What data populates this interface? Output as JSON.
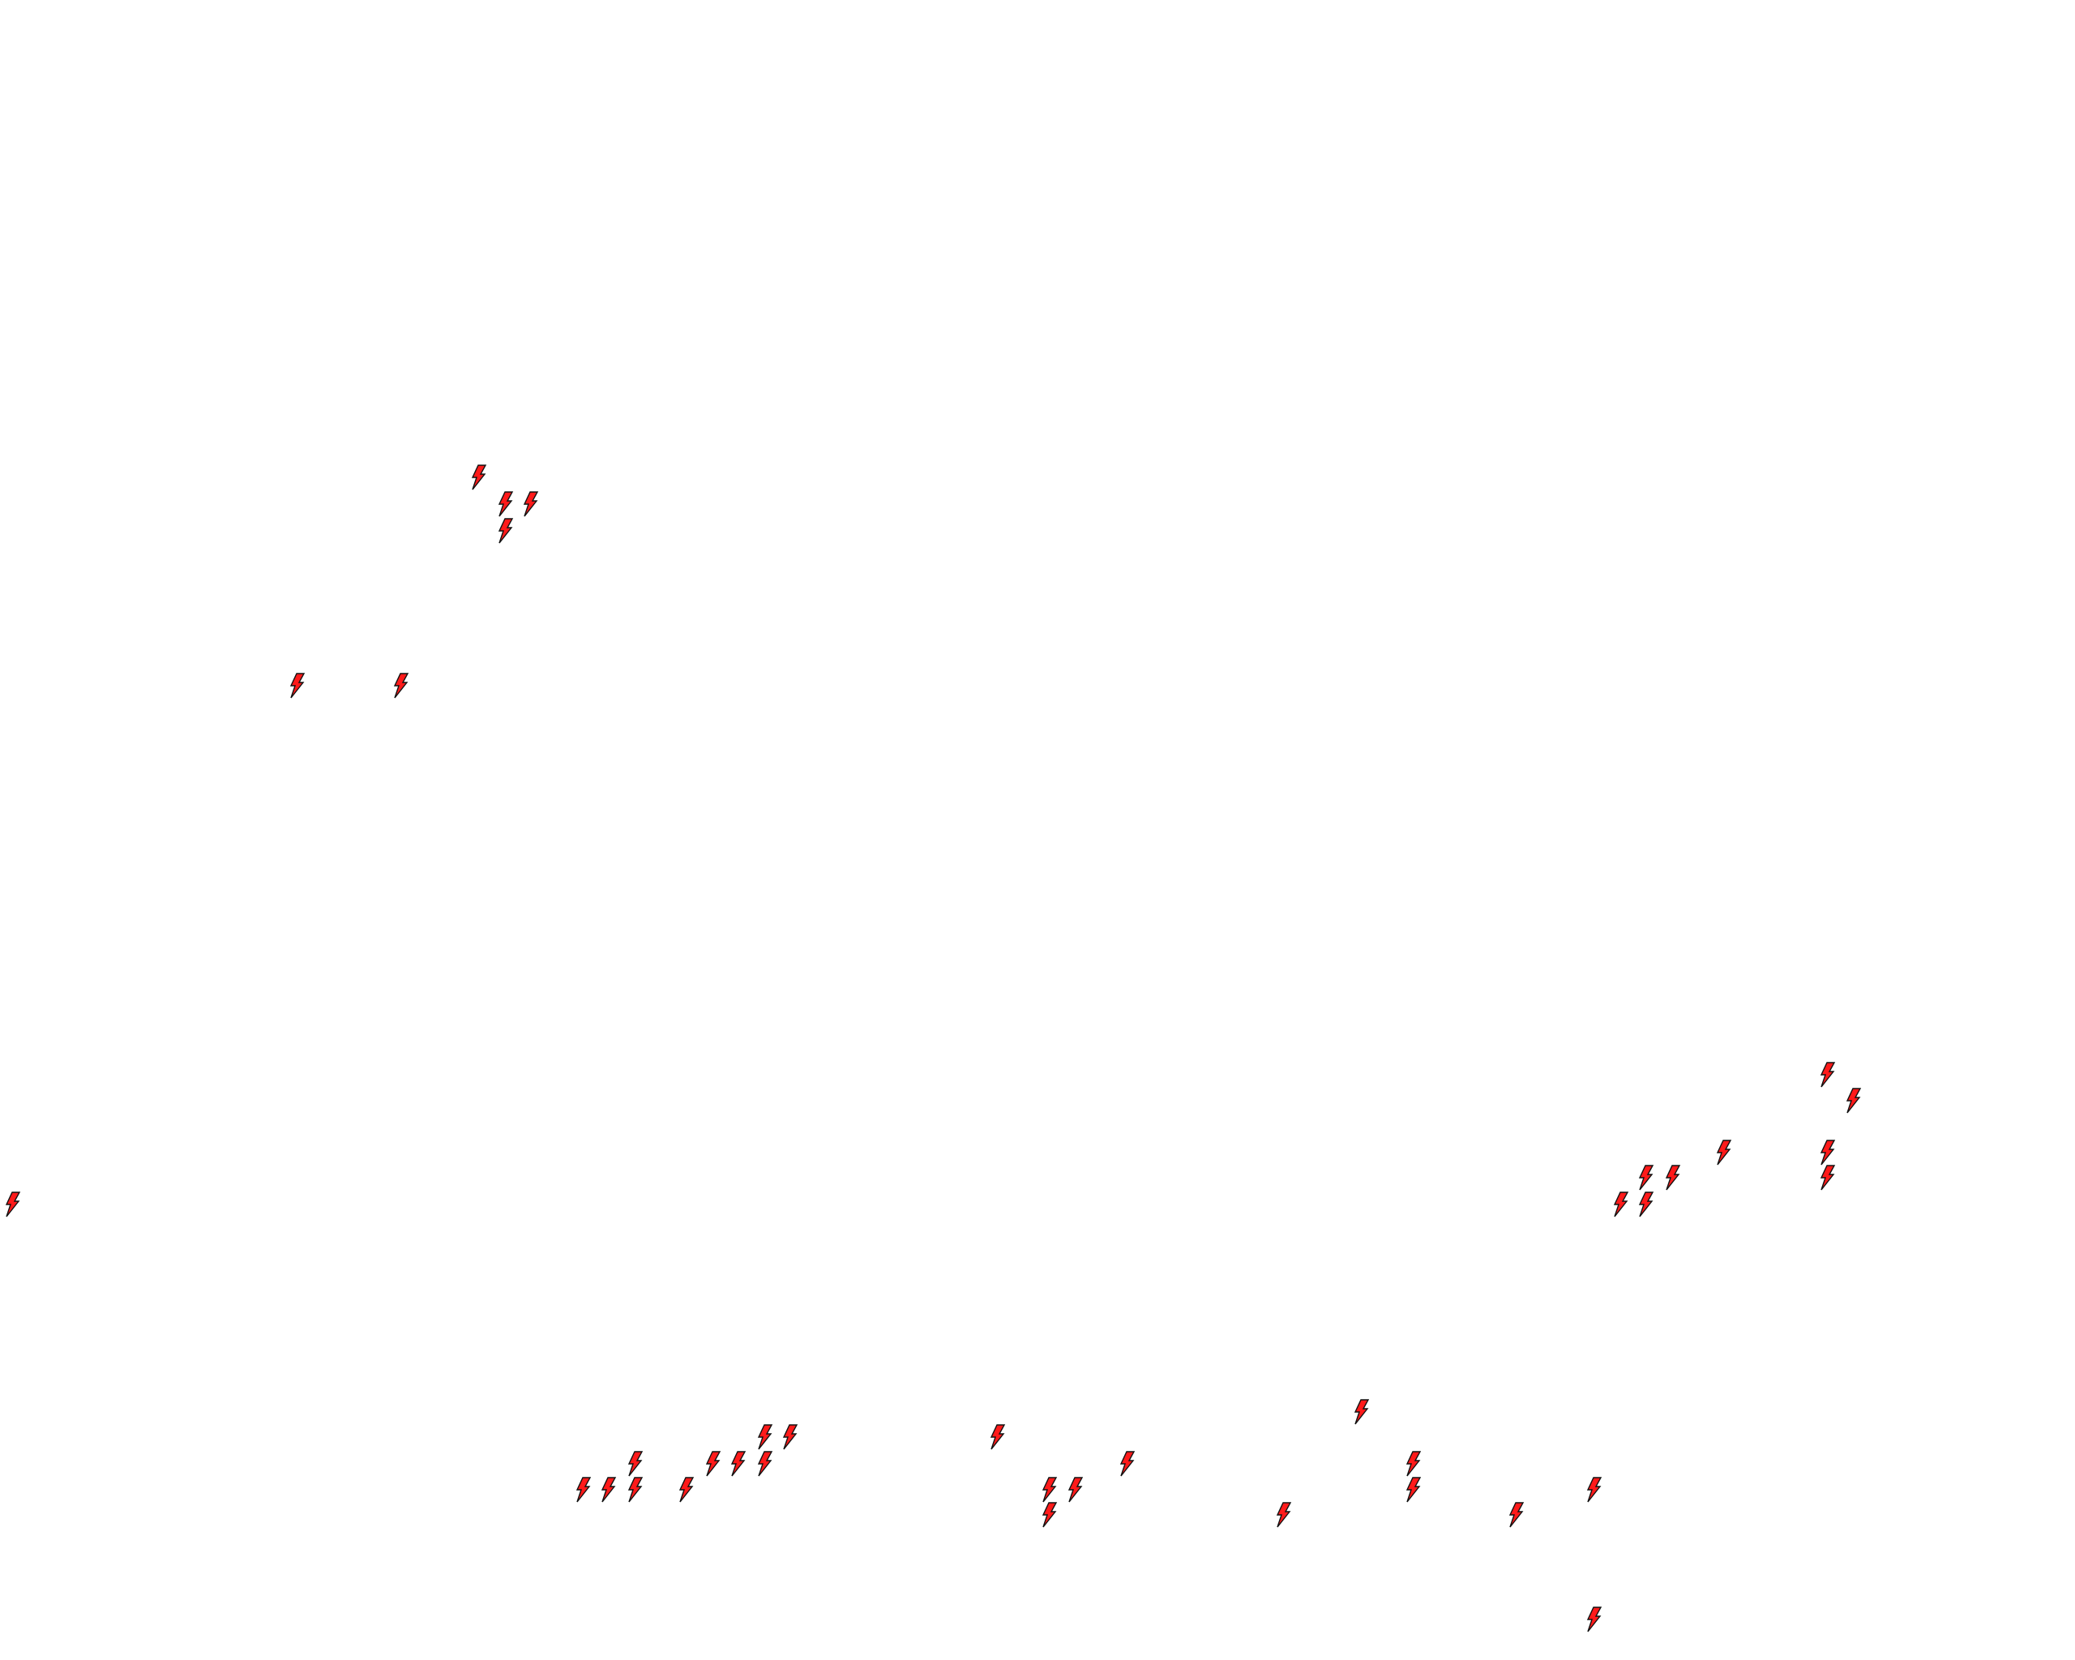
{
  "map": {
    "background_color": "#ffffff",
    "marker": {
      "icon": "lightning-bolt-icon",
      "fill_color": "#ff1a1a",
      "stroke_color": "#111111"
    }
  }
}
